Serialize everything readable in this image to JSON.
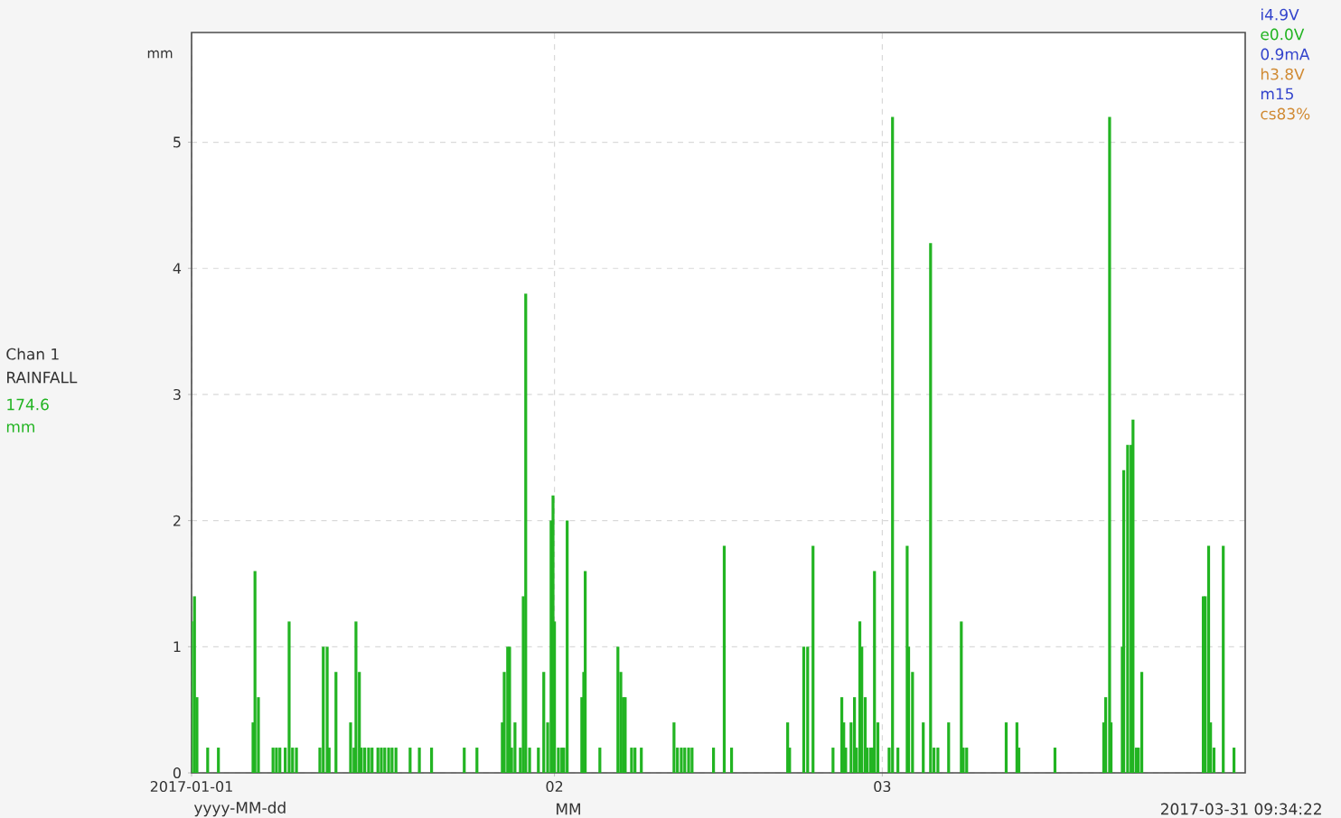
{
  "chart_data": {
    "type": "bar",
    "ylabel": "mm",
    "annotations": [
      "Chan 1",
      "RAINFALL",
      "174.6",
      "mm",
      "yyyy-MM-dd",
      "MM",
      "2017-03-31 09:34:22",
      "i4.9V",
      "e0.0V",
      "0.9mA",
      "h3.8V",
      "m15",
      "cs83%"
    ],
    "xlim": [
      "2017-01-01",
      "2017-04-01"
    ],
    "xticks": [
      {
        "value": "2017-01-01",
        "label": "2017-01-01"
      },
      {
        "value": "2017-02-01",
        "label": "02"
      },
      {
        "value": "2017-03-01",
        "label": "03"
      }
    ],
    "ylim": [
      0,
      5.87
    ],
    "yticks": [
      0,
      1,
      2,
      3,
      4,
      5
    ],
    "grid": true,
    "series": [
      {
        "color": "#22b422",
        "x": [
          "2017-01-01T00:00",
          "2017-01-01T06:00",
          "2017-01-01T11:00",
          "2017-01-02T09:00",
          "2017-01-03T07:00",
          "2017-01-06T06:00",
          "2017-01-06T10:00",
          "2017-01-06T17:00",
          "2017-01-07T23:00",
          "2017-01-08T06:00",
          "2017-01-08T13:00",
          "2017-01-09T00:00",
          "2017-01-09T08:00",
          "2017-01-09T15:00",
          "2017-01-09T23:00",
          "2017-01-11T23:00",
          "2017-01-12T06:00",
          "2017-01-12T14:00",
          "2017-01-12T18:00",
          "2017-01-13T08:00",
          "2017-01-14T14:00",
          "2017-01-14T21:00",
          "2017-01-15T01:00",
          "2017-01-15T08:00",
          "2017-01-15T12:00",
          "2017-01-15T19:00",
          "2017-01-16T03:00",
          "2017-01-16T10:00",
          "2017-01-16T22:00",
          "2017-01-17T05:00",
          "2017-01-17T12:00",
          "2017-01-17T20:00",
          "2017-01-18T03:00",
          "2017-01-18T11:00",
          "2017-01-19T16:00",
          "2017-01-20T11:00",
          "2017-01-21T12:00",
          "2017-01-24T07:00",
          "2017-01-25T09:00",
          "2017-01-27T13:00",
          "2017-01-27T17:00",
          "2017-01-28T00:00",
          "2017-01-28T04:00",
          "2017-01-28T08:00",
          "2017-01-28T15:00",
          "2017-01-29T02:00",
          "2017-01-29T08:00",
          "2017-01-29T13:00",
          "2017-01-29T21:00",
          "2017-01-30T15:00",
          "2017-01-31T02:00",
          "2017-01-31T10:00",
          "2017-01-31T17:00",
          "2017-01-31T21:00",
          "2017-02-01T00:00",
          "2017-02-01T08:00",
          "2017-02-01T15:00",
          "2017-02-01T19:00",
          "2017-02-02T02:00",
          "2017-02-03T08:00",
          "2017-02-03T12:00",
          "2017-02-03T15:00",
          "2017-02-04T21:00",
          "2017-02-06T10:00",
          "2017-02-06T16:00",
          "2017-02-06T21:00",
          "2017-02-07T01:00",
          "2017-02-07T14:00",
          "2017-02-07T21:00",
          "2017-02-08T10:00",
          "2017-02-11T05:00",
          "2017-02-11T12:00",
          "2017-02-11T20:00",
          "2017-02-12T03:00",
          "2017-02-12T11:00",
          "2017-02-12T18:00",
          "2017-02-14T14:00",
          "2017-02-15T12:00",
          "2017-02-16T03:00",
          "2017-02-20T22:00",
          "2017-02-21T02:00",
          "2017-02-22T07:00",
          "2017-02-22T15:00",
          "2017-02-23T02:00",
          "2017-02-24T19:00",
          "2017-02-25T13:00",
          "2017-02-25T17:00",
          "2017-02-25T21:00",
          "2017-02-26T08:00",
          "2017-02-26T15:00",
          "2017-02-26T19:00",
          "2017-02-27T02:00",
          "2017-02-27T06:00",
          "2017-02-27T13:00",
          "2017-02-27T17:00",
          "2017-02-28T00:00",
          "2017-02-28T04:00",
          "2017-02-28T08:00",
          "2017-02-28T15:00",
          "2017-03-01T14:00",
          "2017-03-01T21:00",
          "2017-03-02T08:00",
          "2017-03-03T03:00",
          "2017-03-03T06:00",
          "2017-03-03T14:00",
          "2017-03-04T12:00",
          "2017-03-05T03:00",
          "2017-03-05T10:00",
          "2017-03-05T18:00",
          "2017-03-06T16:00",
          "2017-03-07T18:00",
          "2017-03-07T22:00",
          "2017-03-08T05:00",
          "2017-03-11T14:00",
          "2017-03-12T12:00",
          "2017-03-12T16:00",
          "2017-03-15T18:00",
          "2017-03-19T22:00",
          "2017-03-20T02:00",
          "2017-03-20T10:00",
          "2017-03-20T13:00",
          "2017-03-21T12:00",
          "2017-03-21T15:00",
          "2017-03-21T23:00",
          "2017-03-22T06:00",
          "2017-03-22T10:00",
          "2017-03-22T17:00",
          "2017-03-22T21:00",
          "2017-03-23T04:00",
          "2017-03-28T10:00",
          "2017-03-28T14:00",
          "2017-03-28T21:00",
          "2017-03-29T01:00",
          "2017-03-29T08:00",
          "2017-03-30T03:00",
          "2017-03-31T01:00"
        ],
        "values": [
          1.2,
          1.4,
          0.6,
          0.2,
          0.2,
          0.4,
          1.6,
          0.6,
          0.2,
          0.2,
          0.2,
          0.2,
          1.2,
          0.2,
          0.2,
          0.2,
          1.0,
          1.0,
          0.2,
          0.8,
          0.4,
          0.2,
          1.2,
          0.8,
          0.2,
          0.2,
          0.2,
          0.2,
          0.2,
          0.2,
          0.2,
          0.2,
          0.2,
          0.2,
          0.2,
          0.2,
          0.2,
          0.2,
          0.2,
          0.4,
          0.8,
          1.0,
          1.0,
          0.2,
          0.4,
          0.2,
          1.4,
          3.8,
          0.2,
          0.2,
          0.8,
          0.4,
          2.0,
          2.2,
          1.2,
          0.2,
          0.2,
          0.2,
          2.0,
          0.6,
          0.8,
          1.6,
          0.2,
          1.0,
          0.8,
          0.6,
          0.6,
          0.2,
          0.2,
          0.2,
          0.4,
          0.2,
          0.2,
          0.2,
          0.2,
          0.2,
          0.2,
          1.8,
          0.2,
          0.4,
          0.2,
          1.0,
          1.0,
          1.8,
          0.2,
          0.6,
          0.4,
          0.2,
          0.4,
          0.6,
          0.2,
          1.2,
          1.0,
          0.6,
          0.2,
          0.2,
          0.2,
          1.6,
          0.4,
          0.2,
          5.2,
          0.2,
          1.8,
          1.0,
          0.8,
          0.4,
          4.2,
          0.2,
          0.2,
          0.4,
          1.2,
          0.2,
          0.2,
          0.4,
          0.4,
          0.2,
          0.2,
          0.4,
          0.6,
          5.2,
          0.4,
          1.0,
          2.4,
          2.6,
          2.6,
          2.8,
          0.2,
          0.2,
          0.8,
          1.4,
          1.4,
          1.8,
          0.4,
          0.2,
          1.8,
          0.2
        ]
      }
    ]
  }
}
